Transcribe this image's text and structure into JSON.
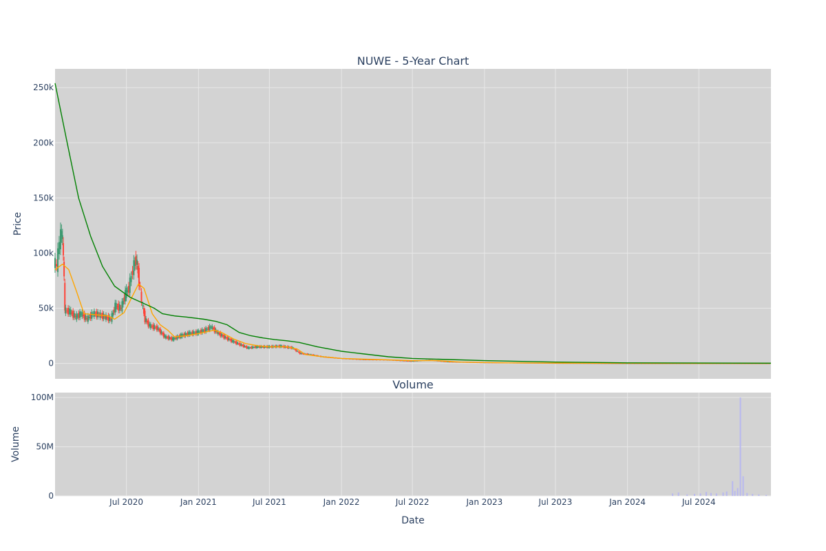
{
  "colors": {
    "plot_bg": "#d3d3d3",
    "grid": "#e8e8e8",
    "increasing": "#3d9970",
    "decreasing": "#ff4136",
    "ma_short": "#ffa500",
    "ma_long": "#008000",
    "volume": "#b8b8f0"
  },
  "chart_data": [
    {
      "type": "candlestick",
      "title": "NUWE - 5-Year Chart",
      "ylabel": "Price",
      "xlabel": "",
      "xlim": [
        "2020-01-01",
        "2025-01-01"
      ],
      "ylim": [
        -14000,
        267000
      ],
      "yticks": [
        0,
        50000,
        100000,
        150000,
        200000,
        250000
      ],
      "ytick_labels": [
        "0",
        "50k",
        "100k",
        "150k",
        "200k",
        "250k"
      ],
      "xticks": [
        "2020-07-01",
        "2021-01-01",
        "2021-07-01",
        "2022-01-01",
        "2022-07-01",
        "2023-01-01",
        "2023-07-01",
        "2024-01-01",
        "2024-07-01"
      ],
      "grid": true,
      "legend": "none",
      "series": [
        {
          "kind": "ohlc-close",
          "points": [
            [
              "2020-01-01",
              92000
            ],
            [
              "2020-01-08",
              88000
            ],
            [
              "2020-01-15",
              110000
            ],
            [
              "2020-01-20",
              120000
            ],
            [
              "2020-01-24",
              98000
            ],
            [
              "2020-01-28",
              48000
            ],
            [
              "2020-02-10",
              47000
            ],
            [
              "2020-02-25",
              42000
            ],
            [
              "2020-03-10",
              45000
            ],
            [
              "2020-03-25",
              40000
            ],
            [
              "2020-04-10",
              45000
            ],
            [
              "2020-04-25",
              44000
            ],
            [
              "2020-05-10",
              42000
            ],
            [
              "2020-05-25",
              40000
            ],
            [
              "2020-06-05",
              52000
            ],
            [
              "2020-06-20",
              50000
            ],
            [
              "2020-07-01",
              63000
            ],
            [
              "2020-07-10",
              68000
            ],
            [
              "2020-07-20",
              85000
            ],
            [
              "2020-07-28",
              95000
            ],
            [
              "2020-08-05",
              75000
            ],
            [
              "2020-08-12",
              55000
            ],
            [
              "2020-08-20",
              40000
            ],
            [
              "2020-09-01",
              34000
            ],
            [
              "2020-09-20",
              32000
            ],
            [
              "2020-10-10",
              24000
            ],
            [
              "2020-10-30",
              22000
            ],
            [
              "2020-11-20",
              25000
            ],
            [
              "2020-12-10",
              27000
            ],
            [
              "2021-01-01",
              28000
            ],
            [
              "2021-01-20",
              30000
            ],
            [
              "2021-02-05",
              33000
            ],
            [
              "2021-02-20",
              28000
            ],
            [
              "2021-03-10",
              24000
            ],
            [
              "2021-04-01",
              20000
            ],
            [
              "2021-04-20",
              17000
            ],
            [
              "2021-05-10",
              14000
            ],
            [
              "2021-06-01",
              15000
            ],
            [
              "2021-07-01",
              15000
            ],
            [
              "2021-08-01",
              15500
            ],
            [
              "2021-09-01",
              14000
            ],
            [
              "2021-09-20",
              9000
            ],
            [
              "2021-10-15",
              8000
            ],
            [
              "2021-11-15",
              6000
            ],
            [
              "2022-01-01",
              4500
            ],
            [
              "2022-03-01",
              3500
            ],
            [
              "2022-05-01",
              3200
            ],
            [
              "2022-07-01",
              2000
            ],
            [
              "2022-08-15",
              3000
            ],
            [
              "2022-10-01",
              1500
            ],
            [
              "2023-01-01",
              800
            ],
            [
              "2023-07-01",
              300
            ],
            [
              "2024-01-01",
              100
            ],
            [
              "2024-07-01",
              50
            ],
            [
              "2025-01-01",
              20
            ]
          ]
        },
        {
          "name": "",
          "kind": "ma-short",
          "points": [
            [
              "2020-01-01",
              85000
            ],
            [
              "2020-01-20",
              90000
            ],
            [
              "2020-02-05",
              85000
            ],
            [
              "2020-02-25",
              65000
            ],
            [
              "2020-03-15",
              45000
            ],
            [
              "2020-04-15",
              44000
            ],
            [
              "2020-05-15",
              43000
            ],
            [
              "2020-06-01",
              40000
            ],
            [
              "2020-06-25",
              46000
            ],
            [
              "2020-07-15",
              60000
            ],
            [
              "2020-08-01",
              72000
            ],
            [
              "2020-08-15",
              68000
            ],
            [
              "2020-09-05",
              45000
            ],
            [
              "2020-09-25",
              35000
            ],
            [
              "2020-10-15",
              30000
            ],
            [
              "2020-11-01",
              24000
            ],
            [
              "2020-12-01",
              25000
            ],
            [
              "2021-01-01",
              27000
            ],
            [
              "2021-02-10",
              30000
            ],
            [
              "2021-03-01",
              28000
            ],
            [
              "2021-04-01",
              22000
            ],
            [
              "2021-05-01",
              18000
            ],
            [
              "2021-06-01",
              16000
            ],
            [
              "2021-07-01",
              15000
            ],
            [
              "2021-08-15",
              15000
            ],
            [
              "2021-09-10",
              13000
            ],
            [
              "2021-10-01",
              8000
            ],
            [
              "2021-11-15",
              6000
            ],
            [
              "2022-01-01",
              4500
            ],
            [
              "2022-04-01",
              3500
            ],
            [
              "2022-07-01",
              2500
            ],
            [
              "2022-09-01",
              2500
            ],
            [
              "2022-11-01",
              1200
            ],
            [
              "2023-03-01",
              500
            ],
            [
              "2023-09-01",
              200
            ],
            [
              "2024-06-01",
              80
            ],
            [
              "2025-01-01",
              30
            ]
          ]
        },
        {
          "name": "",
          "kind": "ma-long",
          "points": [
            [
              "2020-01-01",
              254000
            ],
            [
              "2020-02-01",
              200000
            ],
            [
              "2020-03-01",
              150000
            ],
            [
              "2020-04-01",
              115000
            ],
            [
              "2020-05-01",
              88000
            ],
            [
              "2020-06-01",
              70000
            ],
            [
              "2020-07-10",
              60000
            ],
            [
              "2020-08-10",
              55000
            ],
            [
              "2020-09-10",
              50000
            ],
            [
              "2020-10-01",
              45000
            ],
            [
              "2020-11-01",
              43000
            ],
            [
              "2020-12-01",
              42000
            ],
            [
              "2021-01-15",
              40000
            ],
            [
              "2021-02-15",
              38000
            ],
            [
              "2021-03-15",
              35000
            ],
            [
              "2021-04-15",
              28000
            ],
            [
              "2021-05-15",
              25000
            ],
            [
              "2021-06-15",
              23000
            ],
            [
              "2021-07-15",
              21500
            ],
            [
              "2021-08-15",
              20500
            ],
            [
              "2021-09-15",
              19000
            ],
            [
              "2021-11-01",
              15000
            ],
            [
              "2022-01-01",
              11000
            ],
            [
              "2022-03-01",
              8500
            ],
            [
              "2022-05-01",
              6000
            ],
            [
              "2022-07-01",
              4500
            ],
            [
              "2022-10-01",
              3500
            ],
            [
              "2023-01-01",
              2500
            ],
            [
              "2023-07-01",
              1200
            ],
            [
              "2024-01-01",
              500
            ],
            [
              "2024-07-01",
              300
            ],
            [
              "2025-01-01",
              200
            ]
          ]
        }
      ]
    },
    {
      "type": "bar",
      "title": "Volume",
      "ylabel": "Volume",
      "xlabel": "Date",
      "xlim": [
        "2020-01-01",
        "2025-01-01"
      ],
      "ylim": [
        0,
        105000000
      ],
      "yticks": [
        0,
        50000000,
        100000000
      ],
      "ytick_labels": [
        "0",
        "50M",
        "100M"
      ],
      "xticks": [
        "2020-07-01",
        "2021-01-01",
        "2021-07-01",
        "2022-01-01",
        "2022-07-01",
        "2023-01-01",
        "2023-07-01",
        "2024-01-01",
        "2024-07-01"
      ],
      "xtick_labels": [
        "Jul 2020",
        "Jan 2021",
        "Jul 2021",
        "Jan 2022",
        "Jul 2022",
        "Jan 2023",
        "Jul 2023",
        "Jan 2024",
        "Jul 2024"
      ],
      "grid": true,
      "bars": [
        [
          "2024-04-25",
          2500000
        ],
        [
          "2024-05-10",
          3500000
        ],
        [
          "2024-06-01",
          1500000
        ],
        [
          "2024-06-20",
          2000000
        ],
        [
          "2024-07-05",
          2500000
        ],
        [
          "2024-07-20",
          4000000
        ],
        [
          "2024-08-01",
          3000000
        ],
        [
          "2024-08-15",
          2500000
        ],
        [
          "2024-09-01",
          3500000
        ],
        [
          "2024-09-10",
          4500000
        ],
        [
          "2024-09-25",
          15000000
        ],
        [
          "2024-10-01",
          5000000
        ],
        [
          "2024-10-08",
          8000000
        ],
        [
          "2024-10-15",
          100000000
        ],
        [
          "2024-10-22",
          20000000
        ],
        [
          "2024-11-01",
          3000000
        ],
        [
          "2024-11-15",
          2000000
        ],
        [
          "2024-12-01",
          1500000
        ],
        [
          "2024-12-20",
          1000000
        ]
      ]
    }
  ]
}
